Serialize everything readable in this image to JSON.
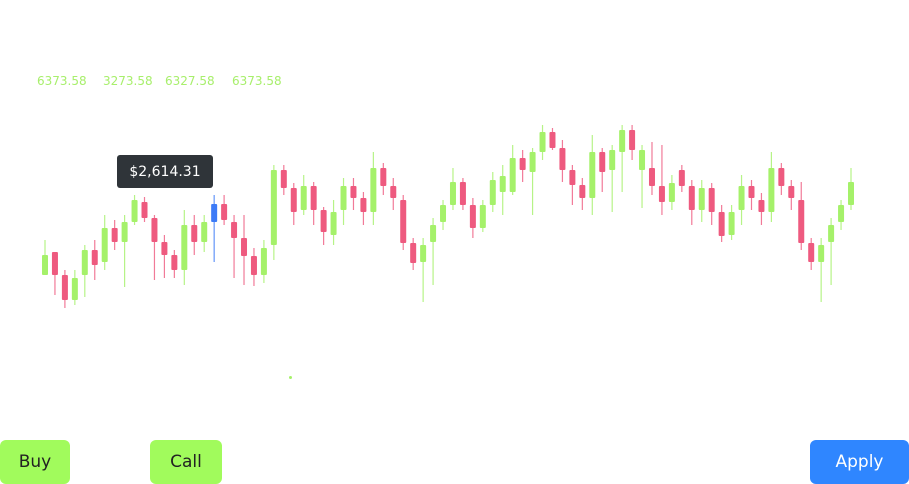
{
  "labels": [
    "6373.58",
    "3273.58",
    "6327.58",
    "6373.58"
  ],
  "tooltip": "$2,614.31",
  "chart_data": {
    "type": "candlestick",
    "open": [
      45,
      68,
      45,
      20,
      45,
      70,
      58,
      92,
      78,
      98,
      118,
      102,
      78,
      65,
      50,
      95,
      78,
      98,
      116,
      98,
      82,
      64,
      45,
      75,
      150,
      132,
      110,
      134,
      110,
      85,
      110,
      134,
      122,
      108,
      152,
      134,
      120,
      77,
      58,
      78,
      98,
      115,
      138,
      115,
      92,
      115,
      128,
      128,
      162,
      148,
      168,
      188,
      172,
      150,
      135,
      122,
      168,
      150,
      168,
      190,
      150,
      152,
      134,
      118,
      150,
      134,
      110,
      132,
      108,
      85,
      110,
      134,
      120,
      108,
      152,
      134,
      120,
      77,
      58,
      78,
      98,
      115
    ],
    "high": [
      80,
      68,
      50,
      50,
      75,
      80,
      105,
      100,
      105,
      125,
      123,
      105,
      85,
      70,
      110,
      105,
      105,
      125,
      125,
      105,
      105,
      72,
      80,
      155,
      155,
      137,
      145,
      138,
      113,
      120,
      142,
      142,
      128,
      168,
      157,
      142,
      125,
      82,
      82,
      102,
      120,
      152,
      142,
      122,
      120,
      148,
      155,
      175,
      170,
      172,
      195,
      192,
      180,
      155,
      142,
      185,
      172,
      175,
      195,
      195,
      175,
      178,
      175,
      145,
      155,
      140,
      140,
      137,
      115,
      115,
      145,
      140,
      127,
      168,
      157,
      140,
      138,
      82,
      82,
      102,
      120,
      152
    ],
    "low": [
      45,
      25,
      12,
      15,
      23,
      40,
      50,
      70,
      33,
      95,
      98,
      40,
      42,
      42,
      35,
      65,
      68,
      58,
      95,
      42,
      35,
      34,
      37,
      60,
      125,
      95,
      105,
      95,
      75,
      75,
      95,
      110,
      95,
      95,
      125,
      110,
      70,
      50,
      18,
      35,
      90,
      110,
      110,
      82,
      88,
      108,
      105,
      125,
      138,
      105,
      160,
      170,
      138,
      115,
      110,
      105,
      128,
      108,
      128,
      160,
      112,
      125,
      105,
      110,
      128,
      95,
      98,
      95,
      78,
      80,
      95,
      110,
      95,
      98,
      125,
      110,
      70,
      50,
      18,
      35,
      90,
      110
    ],
    "close": [
      65,
      45,
      20,
      42,
      70,
      55,
      92,
      78,
      98,
      120,
      102,
      78,
      65,
      50,
      95,
      78,
      98,
      116,
      100,
      82,
      64,
      45,
      72,
      150,
      132,
      108,
      134,
      110,
      88,
      108,
      134,
      122,
      108,
      152,
      134,
      122,
      77,
      57,
      75,
      95,
      115,
      138,
      115,
      92,
      115,
      140,
      144,
      162,
      150,
      168,
      188,
      172,
      150,
      135,
      122,
      168,
      148,
      170,
      190,
      170,
      170,
      134,
      118,
      137,
      134,
      110,
      132,
      108,
      84,
      108,
      134,
      122,
      108,
      152,
      134,
      122,
      77,
      58,
      75,
      95,
      115,
      138
    ],
    "up_color": "#a5f16a",
    "down_color": "#ee5a7f",
    "highlight": {
      "index": 17,
      "color": "#3d7bf7"
    },
    "ylim": [
      0,
      200
    ]
  },
  "buttons": [
    "Buy",
    "Call",
    "Apply"
  ]
}
